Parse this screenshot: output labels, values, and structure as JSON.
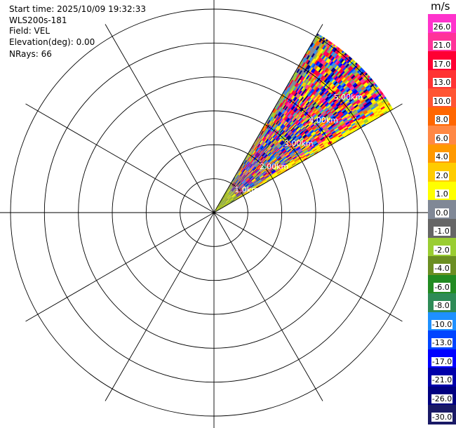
{
  "info": {
    "start_time": "Start time: 2025/10/09 19:32:33",
    "station": "WLS200s-181",
    "field": "Field: VEL",
    "elevation": "Elevation(deg): 0.00",
    "nrays": "NRays: 66"
  },
  "chart_data": {
    "type": "heatmap",
    "subtype": "polar-ppi",
    "field": "VEL",
    "unit": "m/s",
    "sector_azimuth_deg": [
      30,
      60
    ],
    "max_range_km": 6.1,
    "ring_labels": [
      "1.0km",
      "2.00km",
      "3.00km",
      "4.00km",
      "5.00km"
    ],
    "spoke_step_deg": 30,
    "colorbar": {
      "ticks": [
        "26.0",
        "21.0",
        "17.0",
        "13.0",
        "10.0",
        "8.0",
        "6.0",
        "4.0",
        "2.0",
        "1.0",
        "0.0",
        "-1.0",
        "-2.0",
        "-4.0",
        "-6.0",
        "-8.0",
        "-10.0",
        "-13.0",
        "-17.0",
        "-21.0",
        "-26.0",
        "-30.0"
      ],
      "colors": [
        "#ff33cc",
        "#ff3399",
        "#ff0033",
        "#ff3333",
        "#ff5533",
        "#ff6600",
        "#ff8844",
        "#ff9900",
        "#ffcc00",
        "#ffff00",
        "#808896",
        "#666666",
        "#9acd32",
        "#6b8e23",
        "#228b22",
        "#2e8b57",
        "#1e90ff",
        "#0044ff",
        "#0000ff",
        "#0000aa",
        "#000080",
        "#1a1a66"
      ]
    },
    "sample_palette": [
      "#0000ff",
      "#ff0066",
      "#ffff00",
      "#808896",
      "#ff3399",
      "#0044ff",
      "#000080",
      "#ff6600",
      "#9acd32",
      "#ff0033",
      "#1e90ff",
      "#ffcc00"
    ]
  }
}
